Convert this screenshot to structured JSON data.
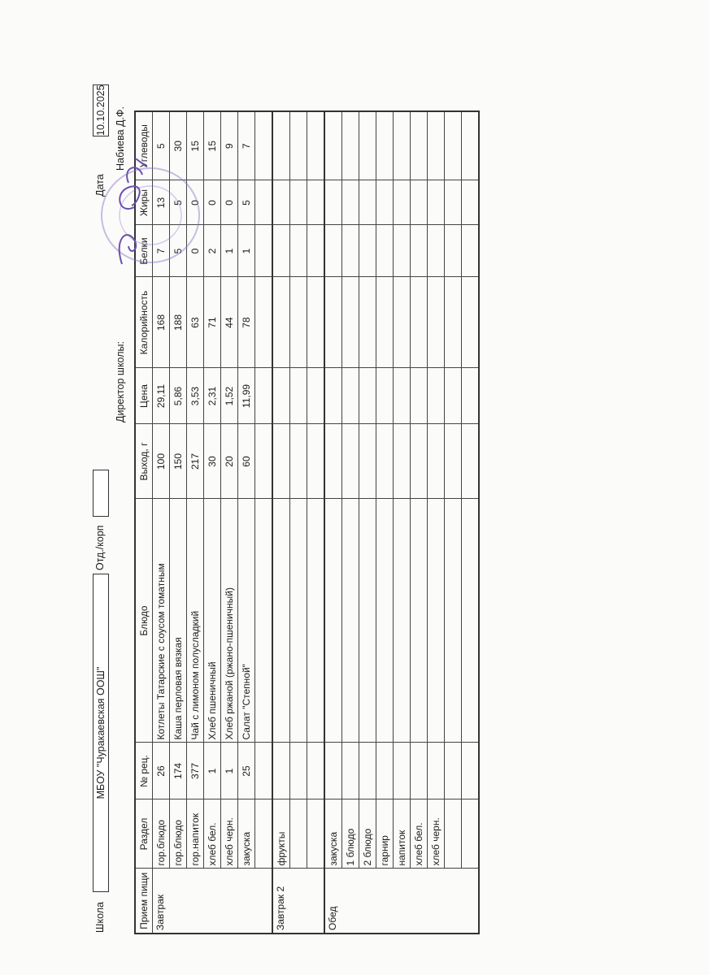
{
  "header": {
    "school_label": "Школа",
    "school_name": "МБОУ \"Чуракаевская ООШ\"",
    "dept_label": "Отд./корп",
    "dept_value": "",
    "date_label": "Дата",
    "date_value": "10.10.2025",
    "director_label": "Директор школы:",
    "director_name": "Набиева Д.Ф."
  },
  "stamp": {
    "color": "#8a6fc0",
    "signature_color": "#6b4fb0"
  },
  "columns": [
    "Прием пищи",
    "Раздел",
    "№ рец.",
    "Блюдо",
    "Выход, г",
    "Цена",
    "Калорийность",
    "Белки",
    "Жиры",
    "Углеводы"
  ],
  "sections": [
    {
      "meal": "Завтрак",
      "rows": [
        [
          "гор.блюдо",
          "26",
          "Котлеты Татарские с соусом томатным",
          "100",
          "29,11",
          "168",
          "7",
          "13",
          "5"
        ],
        [
          "гор.блюдо",
          "174",
          "Каша перловая вязкая",
          "150",
          "5,86",
          "188",
          "5",
          "5",
          "30"
        ],
        [
          "гор.напиток",
          "377",
          "Чай с лимоном полусладкий",
          "217",
          "3,53",
          "63",
          "0",
          "0",
          "15"
        ],
        [
          "хлеб бел.",
          "1",
          "Хлеб пшеничный",
          "30",
          "2,31",
          "71",
          "2",
          "0",
          "15"
        ],
        [
          "хлеб черн.",
          "1",
          "Хлеб ржаной (ржано-пшеничный)",
          "20",
          "1,52",
          "44",
          "1",
          "0",
          "9"
        ],
        [
          "закуска",
          "25",
          "Салат \"Степной\"",
          "60",
          "11,99",
          "78",
          "1",
          "5",
          "7"
        ],
        [
          "",
          "",
          "",
          "",
          "",
          "",
          "",
          "",
          ""
        ]
      ]
    },
    {
      "meal": "Завтрак 2",
      "rows": [
        [
          "фрукты",
          "",
          "",
          "",
          "",
          "",
          "",
          "",
          ""
        ],
        [
          "",
          "",
          "",
          "",
          "",
          "",
          "",
          "",
          ""
        ],
        [
          "",
          "",
          "",
          "",
          "",
          "",
          "",
          "",
          ""
        ]
      ]
    },
    {
      "meal": "Обед",
      "rows": [
        [
          "закуска",
          "",
          "",
          "",
          "",
          "",
          "",
          "",
          ""
        ],
        [
          "1 блюдо",
          "",
          "",
          "",
          "",
          "",
          "",
          "",
          ""
        ],
        [
          "2 блюдо",
          "",
          "",
          "",
          "",
          "",
          "",
          "",
          ""
        ],
        [
          "гарнир",
          "",
          "",
          "",
          "",
          "",
          "",
          "",
          ""
        ],
        [
          "напиток",
          "",
          "",
          "",
          "",
          "",
          "",
          "",
          ""
        ],
        [
          "хлеб бел.",
          "",
          "",
          "",
          "",
          "",
          "",
          "",
          ""
        ],
        [
          "хлеб черн.",
          "",
          "",
          "",
          "",
          "",
          "",
          "",
          ""
        ],
        [
          "",
          "",
          "",
          "",
          "",
          "",
          "",
          "",
          ""
        ],
        [
          "",
          "",
          "",
          "",
          "",
          "",
          "",
          "",
          ""
        ]
      ]
    }
  ]
}
